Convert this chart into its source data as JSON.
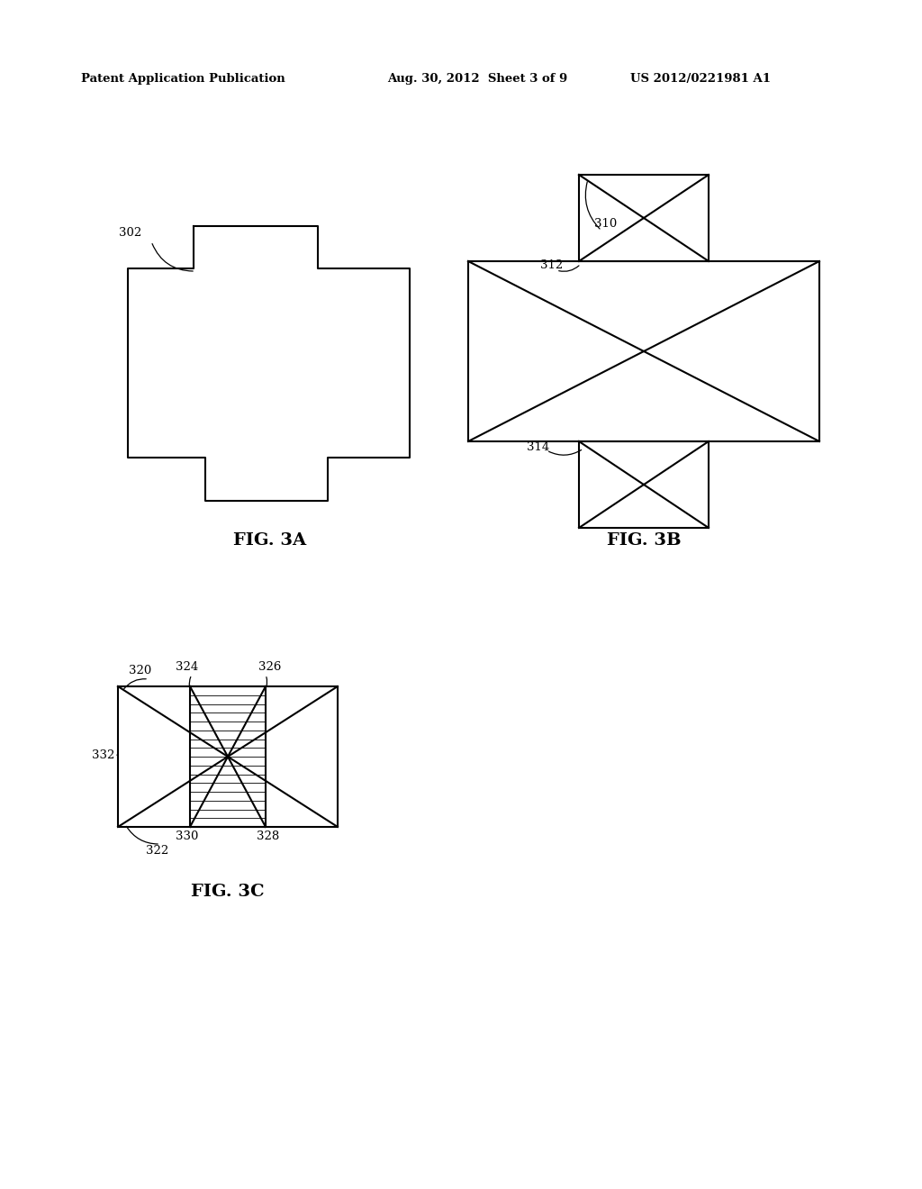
{
  "bg_color": "#ffffff",
  "header_left": "Patent Application Publication",
  "header_mid": "Aug. 30, 2012  Sheet 3 of 9",
  "header_right": "US 2012/0221981 A1",
  "fig3a_label": "FIG. 3A",
  "fig3b_label": "FIG. 3B",
  "fig3c_label": "FIG. 3C",
  "label_302": "302",
  "label_310": "310",
  "label_312": "312",
  "label_314": "314",
  "label_320": "320",
  "label_322": "322",
  "label_324": "324",
  "label_326": "326",
  "label_328": "328",
  "label_330": "330",
  "label_332": "332",
  "line_color": "#000000",
  "line_width": 1.5
}
